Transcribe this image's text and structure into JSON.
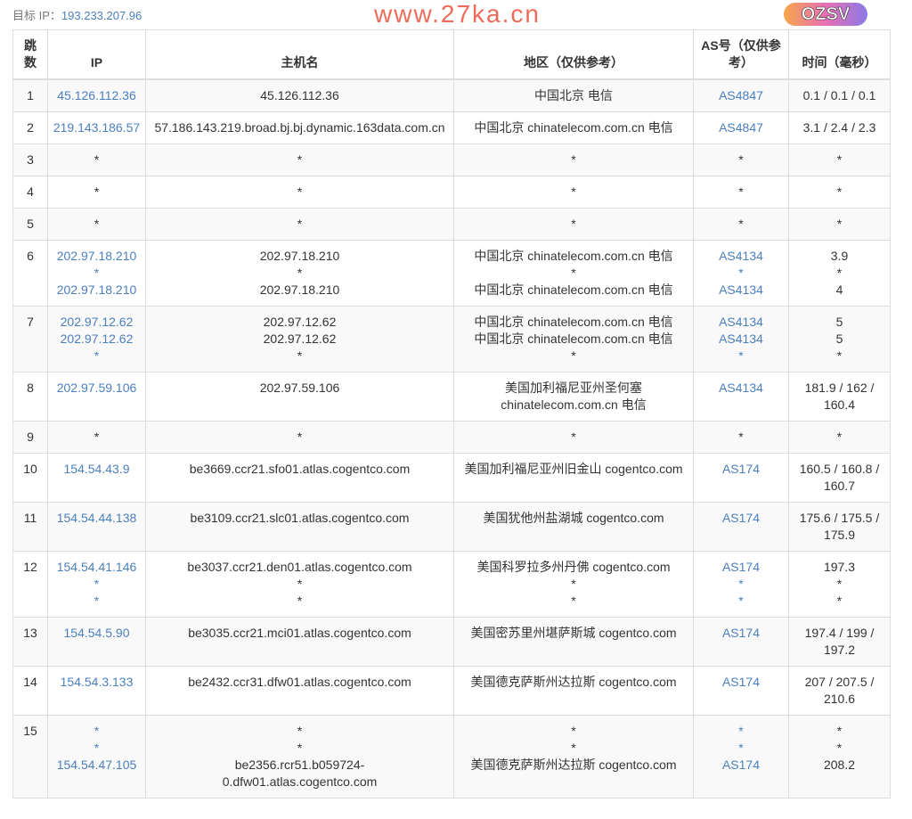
{
  "target": {
    "label": "目标 IP：",
    "ip": "193.233.207.96"
  },
  "headers": [
    "跳\n数",
    "IP",
    "主机名",
    "地区（仅供参考）",
    "AS号（仅供参\n考）",
    "时间（毫秒）"
  ],
  "rows": [
    {
      "hop": "1",
      "ip": "45.126.112.36",
      "host": "45.126.112.36",
      "region": "中国北京 电信",
      "as": "AS4847",
      "time": "0.1 / 0.1 / 0.1"
    },
    {
      "hop": "2",
      "ip": "219.143.186.57",
      "host": "57.186.143.219.broad.bj.bj.dynamic.163data.com.cn",
      "region": "中国北京 chinatelecom.com.cn 电信",
      "as": "AS4847",
      "time": "3.1 / 2.4 / 2.3"
    },
    {
      "hop": "3",
      "ip": "*",
      "host": "*",
      "region": "*",
      "as": "*",
      "time": "*"
    },
    {
      "hop": "4",
      "ip": "*",
      "host": "*",
      "region": "*",
      "as": "*",
      "time": "*"
    },
    {
      "hop": "5",
      "ip": "*",
      "host": "*",
      "region": "*",
      "as": "*",
      "time": "*"
    },
    {
      "hop": "6",
      "ip": "202.97.18.210\n*\n202.97.18.210",
      "host": "202.97.18.210\n*\n202.97.18.210",
      "region": "中国北京 chinatelecom.com.cn 电信\n*\n中国北京 chinatelecom.com.cn 电信",
      "as": "AS4134\n*\nAS4134",
      "time": "3.9\n*\n4"
    },
    {
      "hop": "7",
      "ip": "202.97.12.62\n202.97.12.62\n*",
      "host": "202.97.12.62\n202.97.12.62\n*",
      "region": "中国北京 chinatelecom.com.cn 电信\n中国北京 chinatelecom.com.cn 电信\n*",
      "as": "AS4134\nAS4134\n*",
      "time": "5\n5\n*"
    },
    {
      "hop": "8",
      "ip": "202.97.59.106",
      "host": "202.97.59.106",
      "region": "美国加利福尼亚州圣何塞\nchinatelecom.com.cn 电信",
      "as": "AS4134",
      "time": "181.9 / 162 /\n160.4"
    },
    {
      "hop": "9",
      "ip": "*",
      "host": "*",
      "region": "*",
      "as": "*",
      "time": "*"
    },
    {
      "hop": "10",
      "ip": "154.54.43.9",
      "host": "be3669.ccr21.sfo01.atlas.cogentco.com",
      "region": "美国加利福尼亚州旧金山 cogentco.com",
      "as": "AS174",
      "time": "160.5 / 160.8 /\n160.7"
    },
    {
      "hop": "11",
      "ip": "154.54.44.138",
      "host": "be3109.ccr21.slc01.atlas.cogentco.com",
      "region": "美国犹他州盐湖城 cogentco.com",
      "as": "AS174",
      "time": "175.6 / 175.5 /\n175.9"
    },
    {
      "hop": "12",
      "ip": "154.54.41.146\n*\n*",
      "host": "be3037.ccr21.den01.atlas.cogentco.com\n*\n*",
      "region": "美国科罗拉多州丹佛 cogentco.com\n*\n*",
      "as": "AS174\n*\n*",
      "time": "197.3\n*\n*"
    },
    {
      "hop": "13",
      "ip": "154.54.5.90",
      "host": "be3035.ccr21.mci01.atlas.cogentco.com",
      "region": "美国密苏里州堪萨斯城 cogentco.com",
      "as": "AS174",
      "time": "197.4 / 199 /\n197.2"
    },
    {
      "hop": "14",
      "ip": "154.54.3.133",
      "host": "be2432.ccr31.dfw01.atlas.cogentco.com",
      "region": "美国德克萨斯州达拉斯 cogentco.com",
      "as": "AS174",
      "time": "207 / 207.5 /\n210.6"
    },
    {
      "hop": "15",
      "ip": "*\n*\n154.54.47.105",
      "host": "*\n*\nbe2356.rcr51.b059724-\n0.dfw01.atlas.cogentco.com",
      "region": "*\n*\n美国德克萨斯州达拉斯 cogentco.com",
      "as": "*\n*\nAS174",
      "time": "*\n*\n208.2"
    }
  ],
  "watermark": "www.27ka.cn",
  "logo": "OZSV",
  "colors": {
    "link": "#4a7fbf",
    "zebra": "#f9f9f9",
    "border": "#dddddd",
    "watermark": "#eb503c"
  }
}
